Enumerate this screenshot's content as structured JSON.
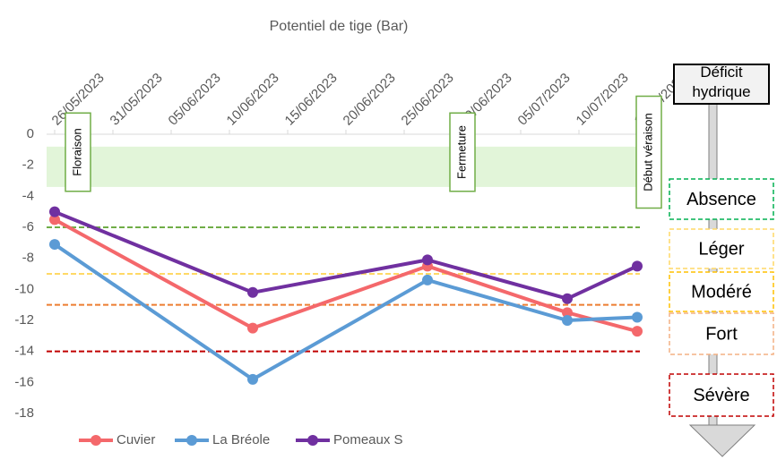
{
  "chart_data": {
    "type": "line",
    "title": "Potentiel de tige (Bar)",
    "xlim": [
      "25/05/2023",
      "16/07/2023"
    ],
    "xticks": [
      "26/05/2023",
      "31/05/2023",
      "05/06/2023",
      "10/06/2023",
      "15/06/2023",
      "20/06/2023",
      "25/06/2023",
      "30/06/2023",
      "05/07/2023",
      "10/07/2023",
      "15/07/2023"
    ],
    "ylim": [
      -18,
      0
    ],
    "yticks": [
      0,
      -2,
      -4,
      -6,
      -8,
      -10,
      -12,
      -14,
      -16,
      -18
    ],
    "x": [
      "26/05/2023",
      "12/06/2023",
      "27/06/2023",
      "09/07/2023",
      "15/07/2023"
    ],
    "series": [
      {
        "name": "Cuvier",
        "color": "#f4686b",
        "values": [
          -5.5,
          -12.5,
          -8.5,
          -11.5,
          -12.7
        ]
      },
      {
        "name": "La Bréole",
        "color": "#5b9bd5",
        "values": [
          -7.1,
          -15.8,
          -9.4,
          -12,
          -11.8
        ]
      },
      {
        "name": "Pomeaux S",
        "color": "#7030a0",
        "values": [
          -5,
          -10.2,
          -8.1,
          -10.6,
          -8.5
        ]
      }
    ],
    "shaded_band": {
      "from": -0.8,
      "to": -3.4,
      "color": "#e2f5d9"
    },
    "reference_lines": [
      {
        "value": -6,
        "color": "#70ad47"
      },
      {
        "value": -9,
        "color": "#ffd966"
      },
      {
        "value": -11,
        "color": "#ed7d31"
      },
      {
        "value": -14,
        "color": "#c00000"
      }
    ],
    "annotations": [
      {
        "text": "Floraison",
        "x": "28/05/2023"
      },
      {
        "text": "Fermeture",
        "x": "30/06/2023"
      },
      {
        "text": "Début véraison",
        "x": "16/07/2023"
      }
    ],
    "legend": "bottom",
    "deficit_scale": {
      "title": "Déficit hydrique",
      "levels": [
        {
          "label": "Absence",
          "color": "#00b050"
        },
        {
          "label": "Léger",
          "color": "#ffd966"
        },
        {
          "label": "Modéré",
          "color": "#ffc000"
        },
        {
          "label": "Fort",
          "color": "#f4b183"
        },
        {
          "label": "Sévère",
          "color": "#c00000"
        }
      ]
    }
  }
}
